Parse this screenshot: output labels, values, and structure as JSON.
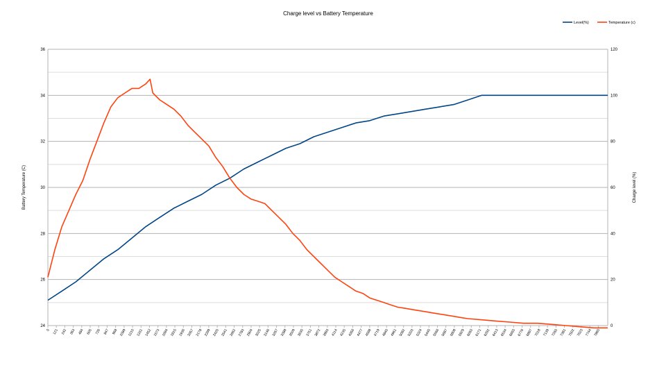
{
  "chart_data": {
    "type": "line",
    "title": "Charge level vs Battery Temperature",
    "ylabel_left": "Battery Temperature (C)",
    "ylabel_right": "Charge level (%)",
    "xlabel": "",
    "legend_position": "top-right",
    "grid": true,
    "x_range": [
      0,
      8000
    ],
    "y_left_range": [
      24,
      36
    ],
    "y_left_ticks": [
      "24",
      "26",
      "28",
      "30",
      "32",
      "34",
      "36"
    ],
    "y_right_range": [
      0,
      120
    ],
    "y_right_ticks": [
      "0",
      "20",
      "40",
      "60",
      "80",
      "100",
      "120"
    ],
    "x_ticks": [
      "0",
      "121",
      "242",
      "363",
      "484",
      "605",
      "726",
      "847",
      "968",
      "1089",
      "1210",
      "1331",
      "1452",
      "1573",
      "1694",
      "1815",
      "1936",
      "2057",
      "2178",
      "2299",
      "2420",
      "2541",
      "2662",
      "2783",
      "2904",
      "3025",
      "3146",
      "3267",
      "3388",
      "3509",
      "3630",
      "3751",
      "3872",
      "3993",
      "4114",
      "4235",
      "4356",
      "4477",
      "4598",
      "4719",
      "4840",
      "4961",
      "5082",
      "5203",
      "5324",
      "5445",
      "5566",
      "5687",
      "5808",
      "5929",
      "6050",
      "6171",
      "6292",
      "6413",
      "6534",
      "6655",
      "6776",
      "6897",
      "7018",
      "7139",
      "7260",
      "7381",
      "7502",
      "7623",
      "7744",
      "7865"
    ],
    "series": [
      {
        "name": "Level(%)",
        "axis": "right",
        "color": "#004586",
        "x": [
          0,
          200,
          400,
          600,
          800,
          1000,
          1200,
          1400,
          1600,
          1800,
          2000,
          2200,
          2400,
          2600,
          2800,
          3000,
          3200,
          3400,
          3600,
          3800,
          4000,
          4200,
          4400,
          4600,
          4800,
          5000,
          5200,
          5400,
          5600,
          5800,
          6000,
          6200,
          6400,
          6600,
          6800,
          7000,
          7200,
          7400,
          7600,
          7800,
          8000
        ],
        "values": [
          11,
          15,
          19,
          24,
          29,
          33,
          38,
          43,
          47,
          51,
          54,
          57,
          61,
          64,
          68,
          71,
          74,
          77,
          79,
          82,
          84,
          86,
          88,
          89,
          91,
          92,
          93,
          94,
          95,
          96,
          98,
          100,
          100,
          100,
          100,
          100,
          100,
          100,
          100,
          100,
          100
        ]
      },
      {
        "name": "Temperature (c)",
        "axis": "left",
        "color": "#ff420e",
        "x": [
          0,
          100,
          200,
          300,
          400,
          500,
          600,
          700,
          800,
          900,
          1000,
          1100,
          1200,
          1300,
          1400,
          1460,
          1500,
          1600,
          1700,
          1800,
          1900,
          2000,
          2100,
          2200,
          2300,
          2400,
          2500,
          2600,
          2700,
          2800,
          2900,
          3000,
          3100,
          3200,
          3300,
          3400,
          3500,
          3600,
          3700,
          3800,
          3900,
          4000,
          4100,
          4200,
          4300,
          4400,
          4500,
          4600,
          4700,
          4800,
          4900,
          5000,
          5100,
          5200,
          5300,
          5400,
          5500,
          5600,
          5700,
          5800,
          5900,
          6000,
          6200,
          6400,
          6600,
          6800,
          7000,
          7200,
          7400,
          7600,
          7800,
          8000
        ],
        "values": [
          26.1,
          27.3,
          28.3,
          29.0,
          29.7,
          30.3,
          31.2,
          32.0,
          32.8,
          33.5,
          33.9,
          34.1,
          34.3,
          34.3,
          34.5,
          34.7,
          34.1,
          33.8,
          33.6,
          33.4,
          33.1,
          32.7,
          32.4,
          32.1,
          31.8,
          31.3,
          30.9,
          30.4,
          30.0,
          29.7,
          29.5,
          29.4,
          29.3,
          29.0,
          28.7,
          28.4,
          28.0,
          27.7,
          27.3,
          27.0,
          26.7,
          26.4,
          26.1,
          25.9,
          25.7,
          25.5,
          25.4,
          25.2,
          25.1,
          25.0,
          24.9,
          24.8,
          24.75,
          24.7,
          24.65,
          24.6,
          24.55,
          24.5,
          24.45,
          24.4,
          24.35,
          24.3,
          24.25,
          24.2,
          24.15,
          24.1,
          24.1,
          24.05,
          24.0,
          23.95,
          23.9,
          23.9
        ]
      }
    ]
  }
}
